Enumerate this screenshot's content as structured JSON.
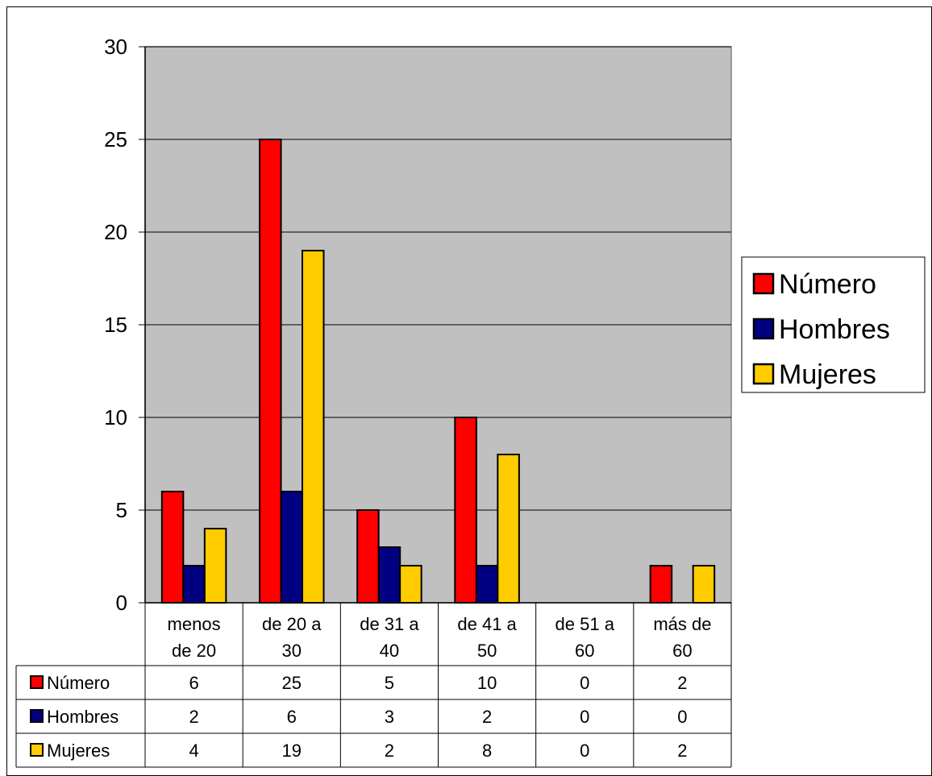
{
  "chart_data": {
    "type": "bar",
    "categories": [
      [
        "menos",
        "de 20"
      ],
      [
        "de 20 a",
        "30"
      ],
      [
        "de 31 a",
        "40"
      ],
      [
        "de 41 a",
        "50"
      ],
      [
        "de 51 a",
        "60"
      ],
      [
        "más de",
        "60"
      ]
    ],
    "series": [
      {
        "name": "Número",
        "values": [
          6,
          25,
          5,
          10,
          0,
          2
        ],
        "color": "#ff0000"
      },
      {
        "name": "Hombres",
        "values": [
          2,
          6,
          3,
          2,
          0,
          0
        ],
        "color": "#000080"
      },
      {
        "name": "Mujeres",
        "values": [
          4,
          19,
          2,
          8,
          0,
          2
        ],
        "color": "#ffcc00"
      }
    ],
    "ylim": [
      0,
      30
    ],
    "yticks": [
      0,
      5,
      10,
      15,
      20,
      25,
      30
    ],
    "grid": true,
    "plot_background": "#c0c0c0",
    "legend": "right",
    "data_table": true
  }
}
